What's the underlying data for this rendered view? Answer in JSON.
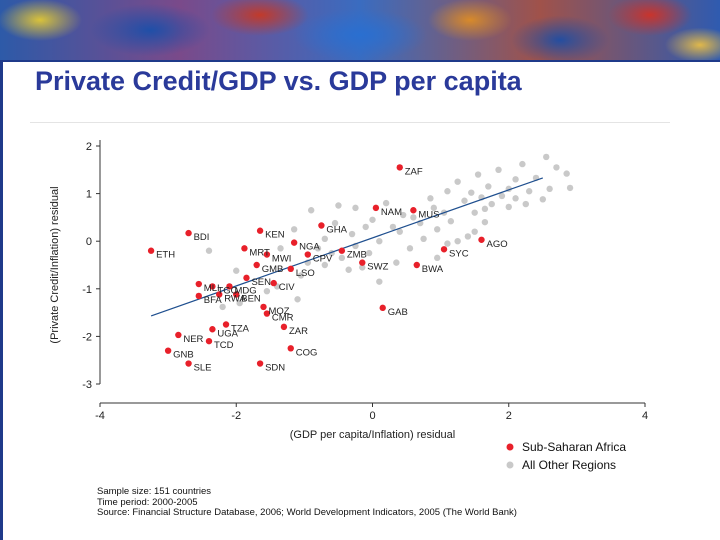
{
  "slide": {
    "title": "Private Credit/GDP vs. GDP per capita"
  },
  "colors": {
    "ssa": "#e8202a",
    "other": "#c9c9c9",
    "fit": "#1f4f8f",
    "title": "#2a3a9a",
    "accent": "#1f3a8a"
  },
  "footnote": {
    "line1": "Sample size: 151 countries",
    "line2": "Time period: 2000-2005",
    "line3": "Source: Financial Structure Database, 2006; World Development Indicators, 2005 (The World Bank)"
  },
  "chart_data": {
    "type": "scatter",
    "title": "",
    "xlabel": "(GDP per capita/Inflation) residual",
    "ylabel": "(Private Credit/Inflation) residual",
    "xlim": [
      -4,
      4
    ],
    "ylim": [
      -3,
      2
    ],
    "xticks": [
      "-4",
      "-2",
      "0",
      "2",
      "4"
    ],
    "yticks": [
      "-3",
      "-2",
      "-1",
      "0",
      "1",
      "2"
    ],
    "grid": false,
    "legend_position": "bottom-right",
    "fit_line": {
      "x": [
        -3.25,
        2.5
      ],
      "y": [
        -1.57,
        1.33
      ]
    },
    "series": [
      {
        "name": "Sub-Saharan Africa",
        "points": [
          {
            "label": "ZAF",
            "x": 0.4,
            "y": 1.55
          },
          {
            "label": "NAM",
            "x": 0.05,
            "y": 0.7
          },
          {
            "label": "MUS",
            "x": 0.6,
            "y": 0.65
          },
          {
            "label": "GHA",
            "x": -0.75,
            "y": 0.33
          },
          {
            "label": "KEN",
            "x": -1.65,
            "y": 0.22
          },
          {
            "label": "BDI",
            "x": -2.7,
            "y": 0.17
          },
          {
            "label": "AGO",
            "x": 1.6,
            "y": 0.03
          },
          {
            "label": "NGA",
            "x": -1.15,
            "y": -0.03
          },
          {
            "label": "MRT",
            "x": -1.88,
            "y": -0.15
          },
          {
            "label": "ZMB",
            "x": -0.45,
            "y": -0.2
          },
          {
            "label": "SYC",
            "x": 1.05,
            "y": -0.17
          },
          {
            "label": "ETH",
            "x": -3.25,
            "y": -0.2
          },
          {
            "label": "MWI",
            "x": -1.55,
            "y": -0.28
          },
          {
            "label": "CPV",
            "x": -0.95,
            "y": -0.28
          },
          {
            "label": "SWZ",
            "x": -0.15,
            "y": -0.45
          },
          {
            "label": "BWA",
            "x": 0.65,
            "y": -0.5
          },
          {
            "label": "GMB",
            "x": -1.7,
            "y": -0.5
          },
          {
            "label": "LSO",
            "x": -1.2,
            "y": -0.58
          },
          {
            "label": "SEN",
            "x": -1.85,
            "y": -0.77
          },
          {
            "label": "CIV",
            "x": -1.45,
            "y": -0.88
          },
          {
            "label": "MLI",
            "x": -2.55,
            "y": -0.9
          },
          {
            "label": "TGO",
            "x": -2.35,
            "y": -0.95
          },
          {
            "label": "MDG",
            "x": -2.1,
            "y": -0.95
          },
          {
            "label": "BFA",
            "x": -2.55,
            "y": -1.15
          },
          {
            "label": "RWA",
            "x": -2.25,
            "y": -1.12
          },
          {
            "label": "BEN",
            "x": -2.0,
            "y": -1.12
          },
          {
            "label": "MOZ",
            "x": -1.6,
            "y": -1.38
          },
          {
            "label": "GAB",
            "x": 0.15,
            "y": -1.4
          },
          {
            "label": "CMR",
            "x": -1.55,
            "y": -1.52
          },
          {
            "label": "TZA",
            "x": -2.15,
            "y": -1.75
          },
          {
            "label": "ZAR",
            "x": -1.3,
            "y": -1.8
          },
          {
            "label": "UGA",
            "x": -2.35,
            "y": -1.85
          },
          {
            "label": "NER",
            "x": -2.85,
            "y": -1.97
          },
          {
            "label": "TCD",
            "x": -2.4,
            "y": -2.1
          },
          {
            "label": "COG",
            "x": -1.2,
            "y": -2.25
          },
          {
            "label": "GNB",
            "x": -3.0,
            "y": -2.3
          },
          {
            "label": "SLE",
            "x": -2.7,
            "y": -2.57
          },
          {
            "label": "SDN",
            "x": -1.65,
            "y": -2.57
          }
        ]
      },
      {
        "name": "All Other Regions",
        "points": [
          {
            "x": 2.55,
            "y": 1.77
          },
          {
            "x": 2.2,
            "y": 1.62
          },
          {
            "x": 2.7,
            "y": 1.55
          },
          {
            "x": 1.85,
            "y": 1.5
          },
          {
            "x": 2.85,
            "y": 1.42
          },
          {
            "x": 1.55,
            "y": 1.4
          },
          {
            "x": 2.4,
            "y": 1.33
          },
          {
            "x": 1.25,
            "y": 1.25
          },
          {
            "x": 1.7,
            "y": 1.15
          },
          {
            "x": 2.0,
            "y": 1.1
          },
          {
            "x": 2.6,
            "y": 1.1
          },
          {
            "x": 2.9,
            "y": 1.12
          },
          {
            "x": 2.3,
            "y": 1.05
          },
          {
            "x": 1.1,
            "y": 1.05
          },
          {
            "x": 1.45,
            "y": 1.02
          },
          {
            "x": 1.9,
            "y": 0.95
          },
          {
            "x": 2.1,
            "y": 0.9
          },
          {
            "x": 1.6,
            "y": 0.92
          },
          {
            "x": 2.5,
            "y": 0.88
          },
          {
            "x": 2.25,
            "y": 0.78
          },
          {
            "x": 1.35,
            "y": 0.85
          },
          {
            "x": 0.85,
            "y": 0.9
          },
          {
            "x": 1.75,
            "y": 0.78
          },
          {
            "x": 0.9,
            "y": 0.7
          },
          {
            "x": 1.65,
            "y": 0.68
          },
          {
            "x": 2.0,
            "y": 0.72
          },
          {
            "x": 1.05,
            "y": 0.6
          },
          {
            "x": 1.5,
            "y": 0.6
          },
          {
            "x": 0.2,
            "y": 0.8
          },
          {
            "x": -0.5,
            "y": 0.75
          },
          {
            "x": -0.25,
            "y": 0.7
          },
          {
            "x": 0.45,
            "y": 0.55
          },
          {
            "x": -0.9,
            "y": 0.65
          },
          {
            "x": 1.15,
            "y": 0.42
          },
          {
            "x": 1.65,
            "y": 0.4
          },
          {
            "x": 0.7,
            "y": 0.38
          },
          {
            "x": 0.3,
            "y": 0.3
          },
          {
            "x": -0.1,
            "y": 0.3
          },
          {
            "x": -0.55,
            "y": 0.38
          },
          {
            "x": 0.95,
            "y": 0.25
          },
          {
            "x": 0.4,
            "y": 0.2
          },
          {
            "x": -0.3,
            "y": 0.15
          },
          {
            "x": 1.4,
            "y": 0.1
          },
          {
            "x": 0.75,
            "y": 0.05
          },
          {
            "x": 0.1,
            "y": 0.0
          },
          {
            "x": -0.7,
            "y": 0.05
          },
          {
            "x": -0.25,
            "y": -0.1
          },
          {
            "x": 0.55,
            "y": -0.15
          },
          {
            "x": 1.1,
            "y": -0.05
          },
          {
            "x": -0.45,
            "y": -0.35
          },
          {
            "x": -0.05,
            "y": -0.25
          },
          {
            "x": 0.35,
            "y": -0.45
          },
          {
            "x": -0.7,
            "y": -0.5
          },
          {
            "x": 0.95,
            "y": -0.35
          },
          {
            "x": -0.35,
            "y": -0.6
          },
          {
            "x": -0.95,
            "y": -0.45
          },
          {
            "x": -1.35,
            "y": -0.15
          },
          {
            "x": -1.05,
            "y": -0.72
          },
          {
            "x": -1.15,
            "y": 0.25
          },
          {
            "x": -1.4,
            "y": -0.95
          },
          {
            "x": -2.0,
            "y": -0.62
          },
          {
            "x": -1.55,
            "y": -1.05
          },
          {
            "x": -2.4,
            "y": -0.2
          },
          {
            "x": -1.95,
            "y": -1.3
          },
          {
            "x": -1.1,
            "y": -1.22
          },
          {
            "x": -2.2,
            "y": -1.38
          },
          {
            "x": 0.1,
            "y": -0.85
          },
          {
            "x": -0.15,
            "y": -0.55
          },
          {
            "x": 0.6,
            "y": 0.5
          },
          {
            "x": 1.25,
            "y": 0.0
          },
          {
            "x": 2.1,
            "y": 1.3
          },
          {
            "x": 1.5,
            "y": 0.2
          },
          {
            "x": 0.0,
            "y": 0.45
          },
          {
            "x": -0.8,
            "y": -0.15
          },
          {
            "x": -0.6,
            "y": -0.25
          }
        ]
      }
    ]
  }
}
